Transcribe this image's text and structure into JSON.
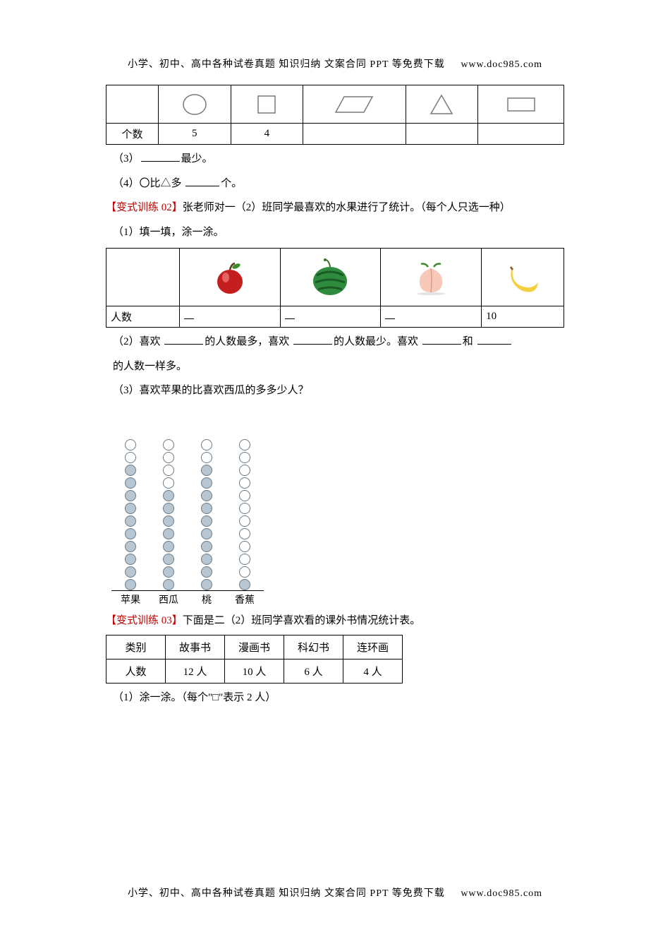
{
  "header": {
    "text": "小学、初中、高中各种试卷真题 知识归纳 文案合同 PPT 等免费下载",
    "url": "www.doc985.com"
  },
  "footer": {
    "text": "小学、初中、高中各种试卷真题 知识归纳 文案合同 PPT 等免费下载",
    "url": "www.doc985.com"
  },
  "shape_table": {
    "shapes": [
      "circle",
      "square",
      "parallelogram",
      "triangle",
      "rectangle"
    ],
    "row_label": "个数",
    "counts": [
      "5",
      "4",
      "",
      "",
      ""
    ],
    "stroke_color": "#7a7a7a",
    "cell_bg": "#ffffff"
  },
  "q3": {
    "prefix": "（3）",
    "suffix": "最少。"
  },
  "q4": {
    "prefix": "（4）〇比△多 ",
    "suffix": "个。"
  },
  "variant02": {
    "label": "【变式训练 02】",
    "text": "张老师对一（2）班同学最喜欢的水果进行了统计。（每个人只选一种）"
  },
  "q02_1": "（1）填一填，涂一涂。",
  "fruit_table": {
    "fruits": [
      "apple",
      "watermelon",
      "peach",
      "banana"
    ],
    "row_label": "人数",
    "values": [
      "",
      "",
      "",
      "10"
    ],
    "placeholder": "—"
  },
  "q02_2": {
    "p1": "（2）喜欢 ",
    "p2": "的人数最多，喜欢 ",
    "p3": "的人数最少。喜欢 ",
    "p4": "和 "
  },
  "q02_2b": "的人数一样多。",
  "q02_3": "（3）喜欢苹果的比喜欢西瓜的多多少人？",
  "pictograph": {
    "labels": [
      "苹果",
      "西瓜",
      "桃",
      "香蕉"
    ],
    "totals": [
      12,
      12,
      12,
      12
    ],
    "open": [
      2,
      4,
      2,
      11
    ],
    "dot_stroke": "#6a7a86",
    "dot_fill": "#b7c6d1",
    "rule_color": "#000000"
  },
  "variant03": {
    "label": "【变式训练 03】",
    "text": "下面是二（2）班同学喜欢看的课外书情况统计表。"
  },
  "book_table": {
    "header_label": "类别",
    "columns": [
      "故事书",
      "漫画书",
      "科幻书",
      "连环画"
    ],
    "row_label": "人数",
    "values": [
      "12 人",
      "10 人",
      "6 人",
      "4 人"
    ]
  },
  "q03_1": "（1）涂一涂。（每个\"□\"表示 2 人）"
}
